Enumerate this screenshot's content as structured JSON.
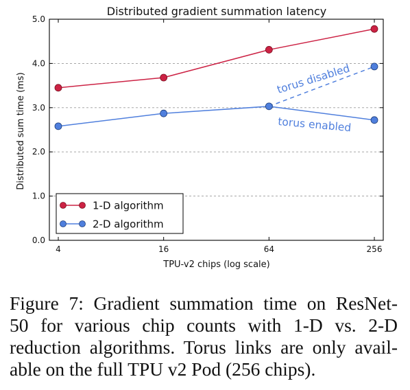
{
  "chart_data": {
    "type": "line",
    "title": "Distributed gradient summation latency",
    "xlabel": "TPU-v2 chips (log scale)",
    "ylabel": "Distributed sum time (ms)",
    "x_scale": "log2",
    "x": [
      4,
      16,
      64,
      256
    ],
    "x_tick_labels": [
      "4",
      "16",
      "64",
      "256"
    ],
    "ylim": [
      0,
      5
    ],
    "y_ticks": [
      0,
      1,
      2,
      3,
      4,
      5
    ],
    "y_tick_labels": [
      "0.0",
      "1.0",
      "2.0",
      "3.0",
      "4.0",
      "5.0"
    ],
    "grid": "horizontal dashed",
    "legend_position": "lower-left",
    "series": [
      {
        "name": "1-D algorithm",
        "color": "#cc2244",
        "x": [
          4,
          16,
          64,
          256
        ],
        "values": [
          3.45,
          3.68,
          4.31,
          4.78
        ],
        "line": "solid"
      },
      {
        "name": "2-D algorithm",
        "color": "#4f7fdd",
        "x": [
          4,
          16,
          64,
          256
        ],
        "values": [
          2.58,
          2.87,
          3.03,
          2.72
        ],
        "line": "solid"
      }
    ],
    "extra_segments": [
      {
        "label": "torus disabled",
        "color": "#4f7fdd",
        "line": "dashed",
        "x": [
          64,
          256
        ],
        "values": [
          3.03,
          3.93
        ]
      }
    ],
    "annotations": [
      {
        "text": "torus disabled",
        "color": "#4f7fdd"
      },
      {
        "text": "torus enabled",
        "color": "#4f7fdd"
      }
    ]
  },
  "caption": {
    "lines": [
      "Figure 7: Gradient summation time on ResNet-",
      "50 for various chip counts with 1-D vs.  2-D",
      "reduction algorithms. Torus links are only avail-",
      "able on the full TPU v2 Pod (256 chips)."
    ]
  }
}
